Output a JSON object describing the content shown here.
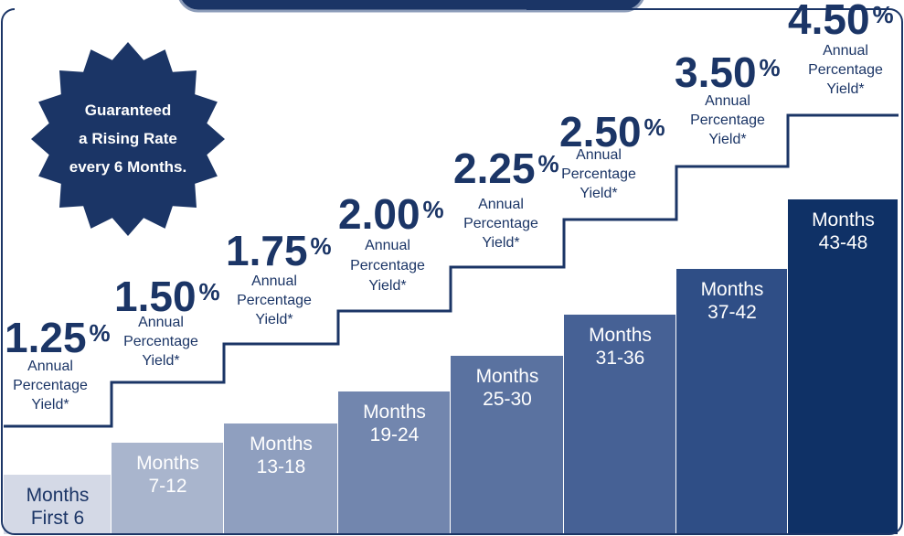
{
  "badge": {
    "lines": [
      "Guaranteed",
      "a Rising Rate",
      "every 6 Months."
    ]
  },
  "steps": [
    {
      "rate": "1.25",
      "unit": "%",
      "caption": [
        "Annual",
        "Percentage",
        "Yield*"
      ],
      "period": [
        "Months",
        "First 6"
      ]
    },
    {
      "rate": "1.50",
      "unit": "%",
      "caption": [
        "Annual",
        "Percentage",
        "Yield*"
      ],
      "period": [
        "Months",
        "7-12"
      ]
    },
    {
      "rate": "1.75",
      "unit": "%",
      "caption": [
        "Annual",
        "Percentage",
        "Yield*"
      ],
      "period": [
        "Months",
        "13-18"
      ]
    },
    {
      "rate": "2.00",
      "unit": "%",
      "caption": [
        "Annual",
        "Percentage",
        "Yield*"
      ],
      "period": [
        "Months",
        "19-24"
      ]
    },
    {
      "rate": "2.25",
      "unit": "%",
      "caption": [
        "Annual",
        "Percentage",
        "Yield*"
      ],
      "period": [
        "Months",
        "25-30"
      ]
    },
    {
      "rate": "2.50",
      "unit": "%",
      "caption": [
        "Annual",
        "Percentage",
        "Yield*"
      ],
      "period": [
        "Months",
        "31-36"
      ]
    },
    {
      "rate": "3.50",
      "unit": "%",
      "caption": [
        "Annual",
        "Percentage",
        "Yield*"
      ],
      "period": [
        "Months",
        "37-42"
      ]
    },
    {
      "rate": "4.50",
      "unit": "%",
      "caption": [
        "Annual",
        "Percentage",
        "Yield*"
      ],
      "period": [
        "Months",
        "43-48"
      ]
    }
  ]
}
